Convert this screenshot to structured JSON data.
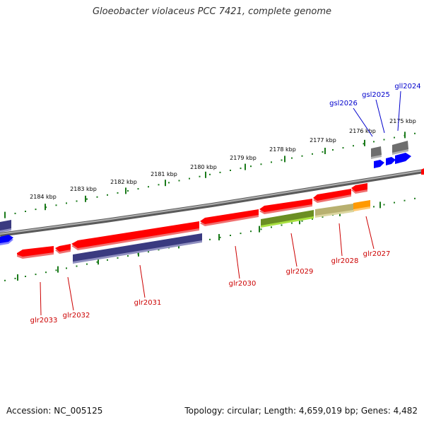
{
  "header": {
    "title": "Gloeobacter violaceus PCC 7421, complete genome"
  },
  "footer": {
    "accession": "Accession: NC_005125",
    "topology": "Topology: circular; Length: 4,659,019 bp; Genes: 4,482"
  },
  "ruler": {
    "ticks": [
      "2175 kbp",
      "2176 kbp",
      "2177 kbp",
      "2178 kbp",
      "2179 kbp",
      "2180 kbp",
      "2181 kbp",
      "2182 kbp",
      "2183 kbp",
      "2184 kbp"
    ]
  },
  "genes": {
    "forward": [
      "gsl2026",
      "gsl2025",
      "gll2024"
    ],
    "reverse": [
      "glr2027",
      "glr2028",
      "glr2029",
      "glr2030",
      "glr2031",
      "glr2032",
      "glr2033"
    ]
  },
  "colors": {
    "backbone": "#808080",
    "gene_red": "#ff0000",
    "gene_blue": "#0000ff",
    "gene_gray": "#6e6e6e",
    "orf_navy": "#3a3a80",
    "orf_olive": "#6b8e23",
    "orf_khaki": "#b8b070",
    "orf_orange": "#ff9900",
    "tick_green": "#1a7a1a",
    "label_red": "#cc0000",
    "label_blue": "#0000cc"
  }
}
